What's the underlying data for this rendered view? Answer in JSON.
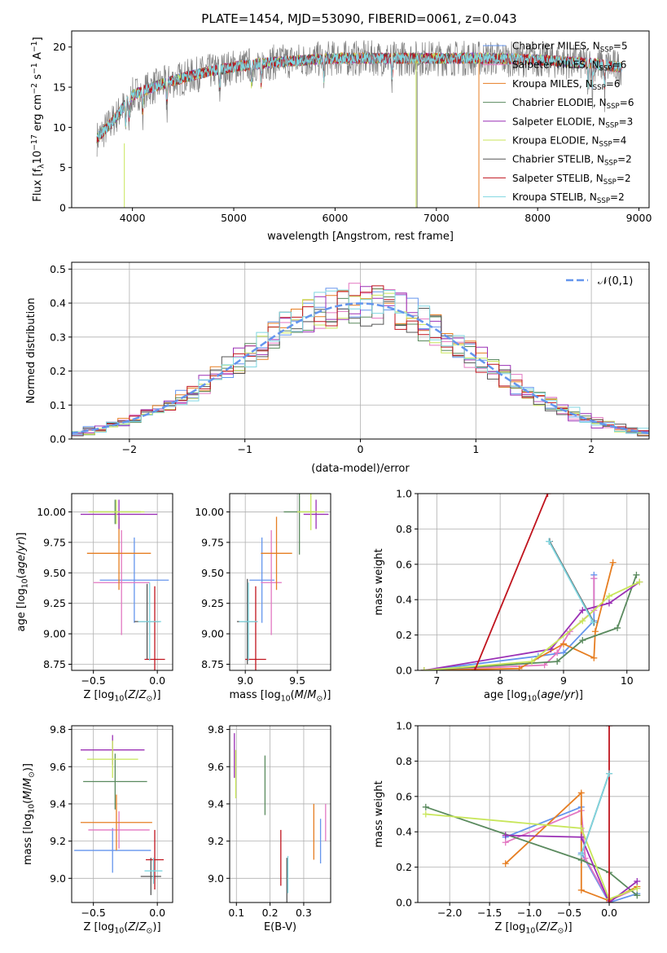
{
  "colors": {
    "Chabrier MILES": "#6495ed",
    "Salpeter MILES": "#e377c2",
    "Kroupa MILES": "#e67e22",
    "Chabrier ELODIE": "#5a8a5e",
    "Salpeter ELODIE": "#9b30b5",
    "Kroupa ELODIE": "#c8e65a",
    "Chabrier STELIB": "#555555",
    "Salpeter STELIB": "#c0141e",
    "Kroupa STELIB": "#7fd6e0"
  },
  "chart_data": [
    {
      "type": "line",
      "title": "PLATE=1454, MJD=53090, FIBERID=0061, z=0.043",
      "xlabel": "wavelength [Angstrom, rest frame]",
      "ylabel": "Flux [f_λ10^-17 erg cm^-2 s^-1 A^-1]",
      "xlim": [
        3400,
        9100
      ],
      "ylim": [
        0,
        22
      ],
      "xticks": [
        4000,
        5000,
        6000,
        7000,
        8000,
        9000
      ],
      "yticks": [
        0,
        5,
        10,
        15,
        20
      ],
      "grid": false,
      "legend_position": "top-right",
      "series": [
        {
          "name": "Chabrier MILES, N_SSP=5"
        },
        {
          "name": "Salpeter MILES, N_SSP=6"
        },
        {
          "name": "Kroupa MILES, N_SSP=6"
        },
        {
          "name": "Chabrier ELODIE, N_SSP=6"
        },
        {
          "name": "Salpeter ELODIE, N_SSP=3"
        },
        {
          "name": "Kroupa ELODIE, N_SSP=4"
        },
        {
          "name": "Chabrier STELIB, N_SSP=2"
        },
        {
          "name": "Salpeter STELIB, N_SSP=2"
        },
        {
          "name": "Kroupa STELIB, N_SSP=2"
        }
      ],
      "continuum": {
        "x": [
          3650,
          3800,
          4000,
          4200,
          4400,
          4700,
          5000,
          5300,
          5600,
          6000,
          6500,
          7000,
          7500,
          8000,
          8500,
          8800
        ],
        "y": [
          10,
          11.5,
          14,
          15,
          15.8,
          16.8,
          17.5,
          18,
          18.3,
          18.6,
          18.6,
          18.6,
          18.6,
          18.4,
          18,
          17.5
        ]
      }
    },
    {
      "type": "line",
      "xlabel": "(data-model)/error",
      "ylabel": "Normed distribution",
      "xlim": [
        -2.5,
        2.5
      ],
      "ylim": [
        0,
        0.52
      ],
      "xticks": [
        -2,
        -1,
        0,
        1,
        2
      ],
      "yticks": [
        0.0,
        0.1,
        0.2,
        0.3,
        0.4,
        0.5
      ],
      "grid": true,
      "legend": [
        "𝒩(0,1)"
      ],
      "legend_position": "top-right",
      "bin_width": 0.1
    },
    {
      "type": "scatter",
      "xlabel": "Z [log10(Z/Z⊙)]",
      "ylabel": "age [log10(age/yr)]",
      "xlim": [
        -0.67,
        0.12
      ],
      "ylim": [
        8.7,
        10.15
      ],
      "xticks": [
        -0.5,
        0.0
      ],
      "yticks": [
        8.75,
        9.0,
        9.25,
        9.5,
        9.75,
        10.0
      ],
      "grid": true,
      "points": [
        {
          "series": "Chabrier MILES",
          "x": -0.18,
          "y": 9.44,
          "xerr": 0.27,
          "yerr": 0.35
        },
        {
          "series": "Salpeter MILES",
          "x": -0.28,
          "y": 9.42,
          "xerr": 0.22,
          "yerr": 0.43
        },
        {
          "series": "Kroupa MILES",
          "x": -0.3,
          "y": 9.66,
          "xerr": 0.25,
          "yerr": 0.3
        },
        {
          "series": "Chabrier ELODIE",
          "x": -0.33,
          "y": 10.0,
          "xerr": 0.2,
          "yerr": 0.1
        },
        {
          "series": "Salpeter ELODIE",
          "x": -0.3,
          "y": 9.98,
          "xerr": 0.3,
          "yerr": 0.12
        },
        {
          "series": "Kroupa ELODIE",
          "x": -0.32,
          "y": 10.0,
          "xerr": 0.22,
          "yerr": 0.1
        },
        {
          "series": "Chabrier STELIB",
          "x": -0.08,
          "y": 9.1,
          "xerr": 0.1,
          "yerr": 0.31
        },
        {
          "series": "Salpeter STELIB",
          "x": -0.02,
          "y": 8.79,
          "xerr": 0.08,
          "yerr": 0.6
        },
        {
          "series": "Kroupa STELIB",
          "x": -0.06,
          "y": 9.1,
          "xerr": 0.09,
          "yerr": 0.32
        }
      ]
    },
    {
      "type": "scatter",
      "xlabel": "mass [log10(M/M⊙)]",
      "ylabel": "",
      "xlim": [
        8.85,
        9.82
      ],
      "ylim": [
        8.7,
        10.15
      ],
      "xticks": [
        9.0,
        9.5
      ],
      "yticks": [
        8.75,
        9.0,
        9.25,
        9.5,
        9.75,
        10.0
      ],
      "grid": true,
      "points": [
        {
          "series": "Chabrier MILES",
          "x": 9.16,
          "y": 9.44,
          "xerr": 0.12,
          "yerr": 0.35
        },
        {
          "series": "Salpeter MILES",
          "x": 9.25,
          "y": 9.42,
          "xerr": 0.1,
          "yerr": 0.43
        },
        {
          "series": "Kroupa MILES",
          "x": 9.3,
          "y": 9.66,
          "xerr": 0.15,
          "yerr": 0.3
        },
        {
          "series": "Chabrier ELODIE",
          "x": 9.52,
          "y": 10.0,
          "xerr": 0.15,
          "yerr": 0.35
        },
        {
          "series": "Salpeter ELODIE",
          "x": 9.68,
          "y": 9.98,
          "xerr": 0.12,
          "yerr": 0.12
        },
        {
          "series": "Kroupa ELODIE",
          "x": 9.63,
          "y": 10.0,
          "xerr": 0.13,
          "yerr": 0.15
        },
        {
          "series": "Chabrier STELIB",
          "x": 9.02,
          "y": 9.1,
          "xerr": 0.1,
          "yerr": 0.35
        },
        {
          "series": "Salpeter STELIB",
          "x": 9.1,
          "y": 8.79,
          "xerr": 0.1,
          "yerr": 0.6
        },
        {
          "series": "Kroupa STELIB",
          "x": 9.03,
          "y": 9.1,
          "xerr": 0.09,
          "yerr": 0.32
        }
      ]
    },
    {
      "type": "line",
      "xlabel": "age [log10(age/yr)]",
      "ylabel": "mass weight",
      "xlim": [
        6.7,
        10.35
      ],
      "ylim": [
        0,
        1.0
      ],
      "xticks": [
        7,
        8,
        9,
        10
      ],
      "yticks": [
        0.0,
        0.2,
        0.4,
        0.6,
        0.8,
        1.0
      ],
      "grid": true,
      "series": [
        {
          "name": "Chabrier MILES",
          "x": [
            6.8,
            8.6,
            9.0,
            9.48,
            9.48,
            9.48
          ],
          "y": [
            0.0,
            0.08,
            0.1,
            0.28,
            0.54,
            0.52
          ]
        },
        {
          "name": "Salpeter MILES",
          "x": [
            6.8,
            8.7,
            8.9,
            9.1,
            9.48,
            9.48
          ],
          "y": [
            0.0,
            0.03,
            0.1,
            0.22,
            0.34,
            0.52
          ]
        },
        {
          "name": "Kroupa MILES",
          "x": [
            6.8,
            8.3,
            9.0,
            9.48,
            9.5,
            9.78
          ],
          "y": [
            0.0,
            0.01,
            0.15,
            0.07,
            0.22,
            0.61
          ]
        },
        {
          "name": "Chabrier ELODIE",
          "x": [
            6.8,
            8.9,
            9.3,
            9.85,
            10.15
          ],
          "y": [
            0.0,
            0.05,
            0.17,
            0.24,
            0.54
          ]
        },
        {
          "name": "Salpeter ELODIE",
          "x": [
            6.8,
            8.8,
            9.3,
            9.72,
            10.2
          ],
          "y": [
            0.0,
            0.12,
            0.34,
            0.38,
            0.5
          ]
        },
        {
          "name": "Kroupa ELODIE",
          "x": [
            6.8,
            8.5,
            9.3,
            9.72,
            10.2
          ],
          "y": [
            0.0,
            0.05,
            0.28,
            0.42,
            0.5
          ]
        },
        {
          "name": "Chabrier STELIB",
          "x": [
            8.78,
            9.48
          ],
          "y": [
            0.73,
            0.27
          ]
        },
        {
          "name": "Salpeter STELIB",
          "x": [
            7.6,
            8.75
          ],
          "y": [
            0.0,
            1.0
          ]
        },
        {
          "name": "Kroupa STELIB",
          "x": [
            8.77,
            9.47
          ],
          "y": [
            0.73,
            0.27
          ]
        }
      ]
    },
    {
      "type": "scatter",
      "xlabel": "Z [log10(Z/Z⊙)]",
      "ylabel": "mass [log10(M/M⊙)]",
      "xlim": [
        -0.67,
        0.12
      ],
      "ylim": [
        8.87,
        9.82
      ],
      "xticks": [
        -0.5,
        0.0
      ],
      "yticks": [
        9.0,
        9.2,
        9.4,
        9.6,
        9.8
      ],
      "grid": true,
      "points": [
        {
          "series": "Chabrier MILES",
          "x": -0.35,
          "y": 9.15,
          "xerr": 0.3,
          "yerr": 0.12
        },
        {
          "series": "Salpeter MILES",
          "x": -0.3,
          "y": 9.26,
          "xerr": 0.24,
          "yerr": 0.1
        },
        {
          "series": "Kroupa MILES",
          "x": -0.32,
          "y": 9.3,
          "xerr": 0.28,
          "yerr": 0.15
        },
        {
          "series": "Chabrier ELODIE",
          "x": -0.33,
          "y": 9.52,
          "xerr": 0.25,
          "yerr": 0.15
        },
        {
          "series": "Salpeter ELODIE",
          "x": -0.35,
          "y": 9.69,
          "xerr": 0.25,
          "yerr": 0.08
        },
        {
          "series": "Kroupa ELODIE",
          "x": -0.35,
          "y": 9.64,
          "xerr": 0.2,
          "yerr": 0.1
        },
        {
          "series": "Chabrier STELIB",
          "x": -0.05,
          "y": 9.01,
          "xerr": 0.08,
          "yerr": 0.1
        },
        {
          "series": "Salpeter STELIB",
          "x": -0.02,
          "y": 9.1,
          "xerr": 0.07,
          "yerr": 0.16
        },
        {
          "series": "Kroupa STELIB",
          "x": -0.03,
          "y": 9.04,
          "xerr": 0.07,
          "yerr": 0.07
        }
      ]
    },
    {
      "type": "scatter",
      "xlabel": "E(B-V)",
      "ylabel": "",
      "xlim": [
        0.08,
        0.38
      ],
      "ylim": [
        8.87,
        9.82
      ],
      "xticks": [
        0.1,
        0.2,
        0.3
      ],
      "yticks": [
        9.0,
        9.2,
        9.4,
        9.6,
        9.8
      ],
      "grid": true,
      "points": [
        {
          "series": "Chabrier MILES",
          "x": 0.35,
          "y": 9.2,
          "yerr": 0.12
        },
        {
          "series": "Salpeter MILES",
          "x": 0.365,
          "y": 9.3,
          "yerr": 0.1
        },
        {
          "series": "Kroupa MILES",
          "x": 0.33,
          "y": 9.25,
          "yerr": 0.15
        },
        {
          "series": "Chabrier ELODIE",
          "x": 0.185,
          "y": 9.5,
          "yerr": 0.16
        },
        {
          "series": "Salpeter ELODIE",
          "x": 0.094,
          "y": 9.66,
          "yerr": 0.12
        },
        {
          "series": "Kroupa ELODIE",
          "x": 0.098,
          "y": 9.56,
          "yerr": 0.13
        },
        {
          "series": "Chabrier STELIB",
          "x": 0.25,
          "y": 8.99,
          "yerr": 0.12
        },
        {
          "series": "Salpeter STELIB",
          "x": 0.232,
          "y": 9.11,
          "yerr": 0.15
        },
        {
          "series": "Kroupa STELIB",
          "x": 0.253,
          "y": 9.02,
          "yerr": 0.1
        }
      ]
    },
    {
      "type": "line",
      "xlabel": "Z [log10(Z/Z⊙)]",
      "ylabel": "mass weight",
      "xlim": [
        -2.4,
        0.5
      ],
      "ylim": [
        0,
        1.0
      ],
      "xticks": [
        -2.0,
        -1.5,
        -1.0,
        -0.5,
        0.0
      ],
      "yticks": [
        0.0,
        0.2,
        0.4,
        0.6,
        0.8,
        1.0
      ],
      "grid": true,
      "series": [
        {
          "name": "Chabrier MILES",
          "x": [
            -1.3,
            -0.35,
            -0.35,
            0.0,
            0.35
          ],
          "y": [
            0.37,
            0.54,
            0.28,
            0.0,
            0.05
          ]
        },
        {
          "name": "Salpeter MILES",
          "x": [
            -1.3,
            -0.35,
            -0.3,
            0.0,
            0.35
          ],
          "y": [
            0.34,
            0.52,
            0.25,
            0.01,
            0.08
          ]
        },
        {
          "name": "Kroupa MILES",
          "x": [
            -1.3,
            -0.35,
            -0.35,
            0.0,
            0.35
          ],
          "y": [
            0.22,
            0.62,
            0.07,
            0.01,
            0.09
          ]
        },
        {
          "name": "Chabrier ELODIE",
          "x": [
            -2.3,
            -0.35,
            0.0,
            0.35
          ],
          "y": [
            0.54,
            0.24,
            0.17,
            0.04
          ]
        },
        {
          "name": "Salpeter ELODIE",
          "x": [
            -1.3,
            -0.35,
            0.0,
            0.35
          ],
          "y": [
            0.38,
            0.37,
            0.0,
            0.12
          ]
        },
        {
          "name": "Kroupa ELODIE",
          "x": [
            -2.3,
            -0.35,
            0.0,
            0.35
          ],
          "y": [
            0.5,
            0.42,
            0.02,
            0.08
          ]
        },
        {
          "name": "Chabrier STELIB",
          "x": [
            -0.35,
            0.0
          ],
          "y": [
            0.27,
            0.73
          ]
        },
        {
          "name": "Salpeter STELIB",
          "x": [
            0.0,
            0.0
          ],
          "y": [
            0.0,
            1.0
          ]
        },
        {
          "name": "Kroupa STELIB",
          "x": [
            -0.35,
            0.0
          ],
          "y": [
            0.27,
            0.73
          ]
        }
      ]
    }
  ]
}
